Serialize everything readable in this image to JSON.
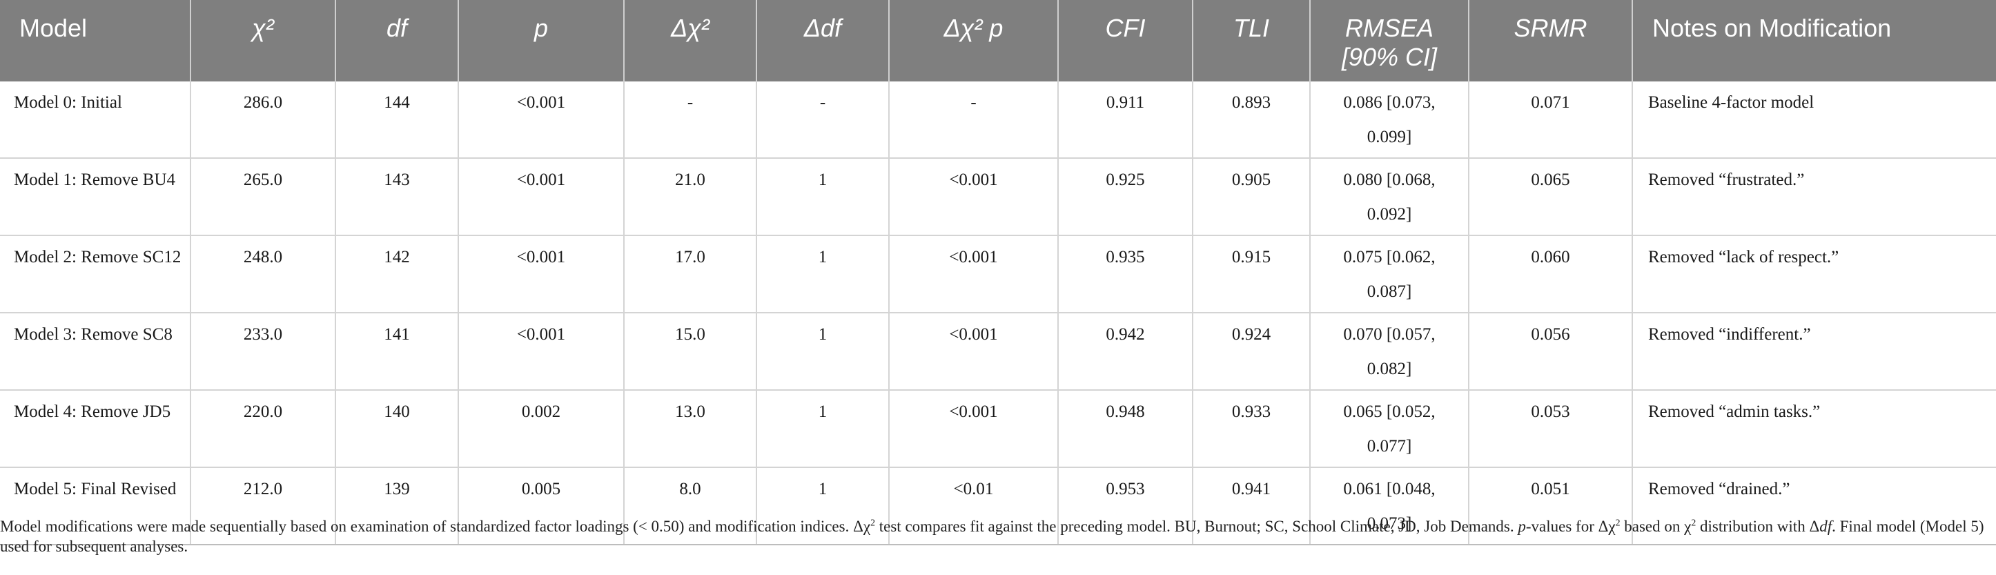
{
  "table": {
    "headers": [
      {
        "key": "model",
        "label": "Model",
        "italic": false
      },
      {
        "key": "chi2",
        "label": "χ²",
        "italic": true
      },
      {
        "key": "df",
        "label": "df",
        "italic": true
      },
      {
        "key": "p",
        "label": "p",
        "italic": true
      },
      {
        "key": "dchi2",
        "label": "Δχ²",
        "italic": true
      },
      {
        "key": "ddf",
        "label": "Δdf",
        "italic": true
      },
      {
        "key": "dchi2p",
        "label": "Δχ² p",
        "italic": true
      },
      {
        "key": "cfi",
        "label": "CFI",
        "italic": true
      },
      {
        "key": "tli",
        "label": "TLI",
        "italic": true
      },
      {
        "key": "rmsea",
        "label": "RMSEA [90% CI]",
        "italic": true
      },
      {
        "key": "srmr",
        "label": "SRMR",
        "italic": true
      },
      {
        "key": "notes",
        "label": "Notes on Modification",
        "italic": false
      }
    ],
    "rows": [
      {
        "model": "Model 0: Initial",
        "chi2": "286.0",
        "df": "144",
        "p": "<0.001",
        "dchi2": "-",
        "ddf": "-",
        "dchi2p": "-",
        "cfi": "0.911",
        "tli": "0.893",
        "rmsea": "0.086 [0.073, 0.099]",
        "srmr": "0.071",
        "notes": "Baseline 4-factor model"
      },
      {
        "model": "Model 1: Remove BU4",
        "chi2": "265.0",
        "df": "143",
        "p": "<0.001",
        "dchi2": "21.0",
        "ddf": "1",
        "dchi2p": "<0.001",
        "cfi": "0.925",
        "tli": "0.905",
        "rmsea": "0.080 [0.068, 0.092]",
        "srmr": "0.065",
        "notes": "Removed “frustrated.”"
      },
      {
        "model": "Model 2: Remove SC12",
        "chi2": "248.0",
        "df": "142",
        "p": "<0.001",
        "dchi2": "17.0",
        "ddf": "1",
        "dchi2p": "<0.001",
        "cfi": "0.935",
        "tli": "0.915",
        "rmsea": "0.075 [0.062, 0.087]",
        "srmr": "0.060",
        "notes": "Removed “lack of respect.”"
      },
      {
        "model": "Model 3: Remove SC8",
        "chi2": "233.0",
        "df": "141",
        "p": "<0.001",
        "dchi2": "15.0",
        "ddf": "1",
        "dchi2p": "<0.001",
        "cfi": "0.942",
        "tli": "0.924",
        "rmsea": "0.070 [0.057, 0.082]",
        "srmr": "0.056",
        "notes": "Removed “indifferent.”"
      },
      {
        "model": "Model 4: Remove JD5",
        "chi2": "220.0",
        "df": "140",
        "p": "0.002",
        "dchi2": "13.0",
        "ddf": "1",
        "dchi2p": "<0.001",
        "cfi": "0.948",
        "tli": "0.933",
        "rmsea": "0.065 [0.052, 0.077]",
        "srmr": "0.053",
        "notes": "Removed “admin tasks.”"
      },
      {
        "model": "Model 5: Final Revised",
        "chi2": "212.0",
        "df": "139",
        "p": "0.005",
        "dchi2": "8.0",
        "ddf": "1",
        "dchi2p": "<0.01",
        "cfi": "0.953",
        "tli": "0.941",
        "rmsea": "0.061 [0.048, 0.073]",
        "srmr": "0.051",
        "notes": "Removed “drained.”"
      }
    ]
  },
  "footnote": {
    "part1": "Model modifications were made sequentially based on examination of standardized factor loadings (< 0.50) and modification indices. Δχ",
    "sup1": "2",
    "part2": " test compares fit against the preceding model. BU, Burnout; SC, School Climate, JD, Job Demands. ",
    "p_ital": "p",
    "part3": "-values for Δχ",
    "sup2": "2",
    "part4": " based on χ",
    "sup3": "2",
    "part5": " distribution with Δ",
    "df_ital": "df",
    "part6": ". Final model (Model 5) used for subsequent analyses."
  }
}
